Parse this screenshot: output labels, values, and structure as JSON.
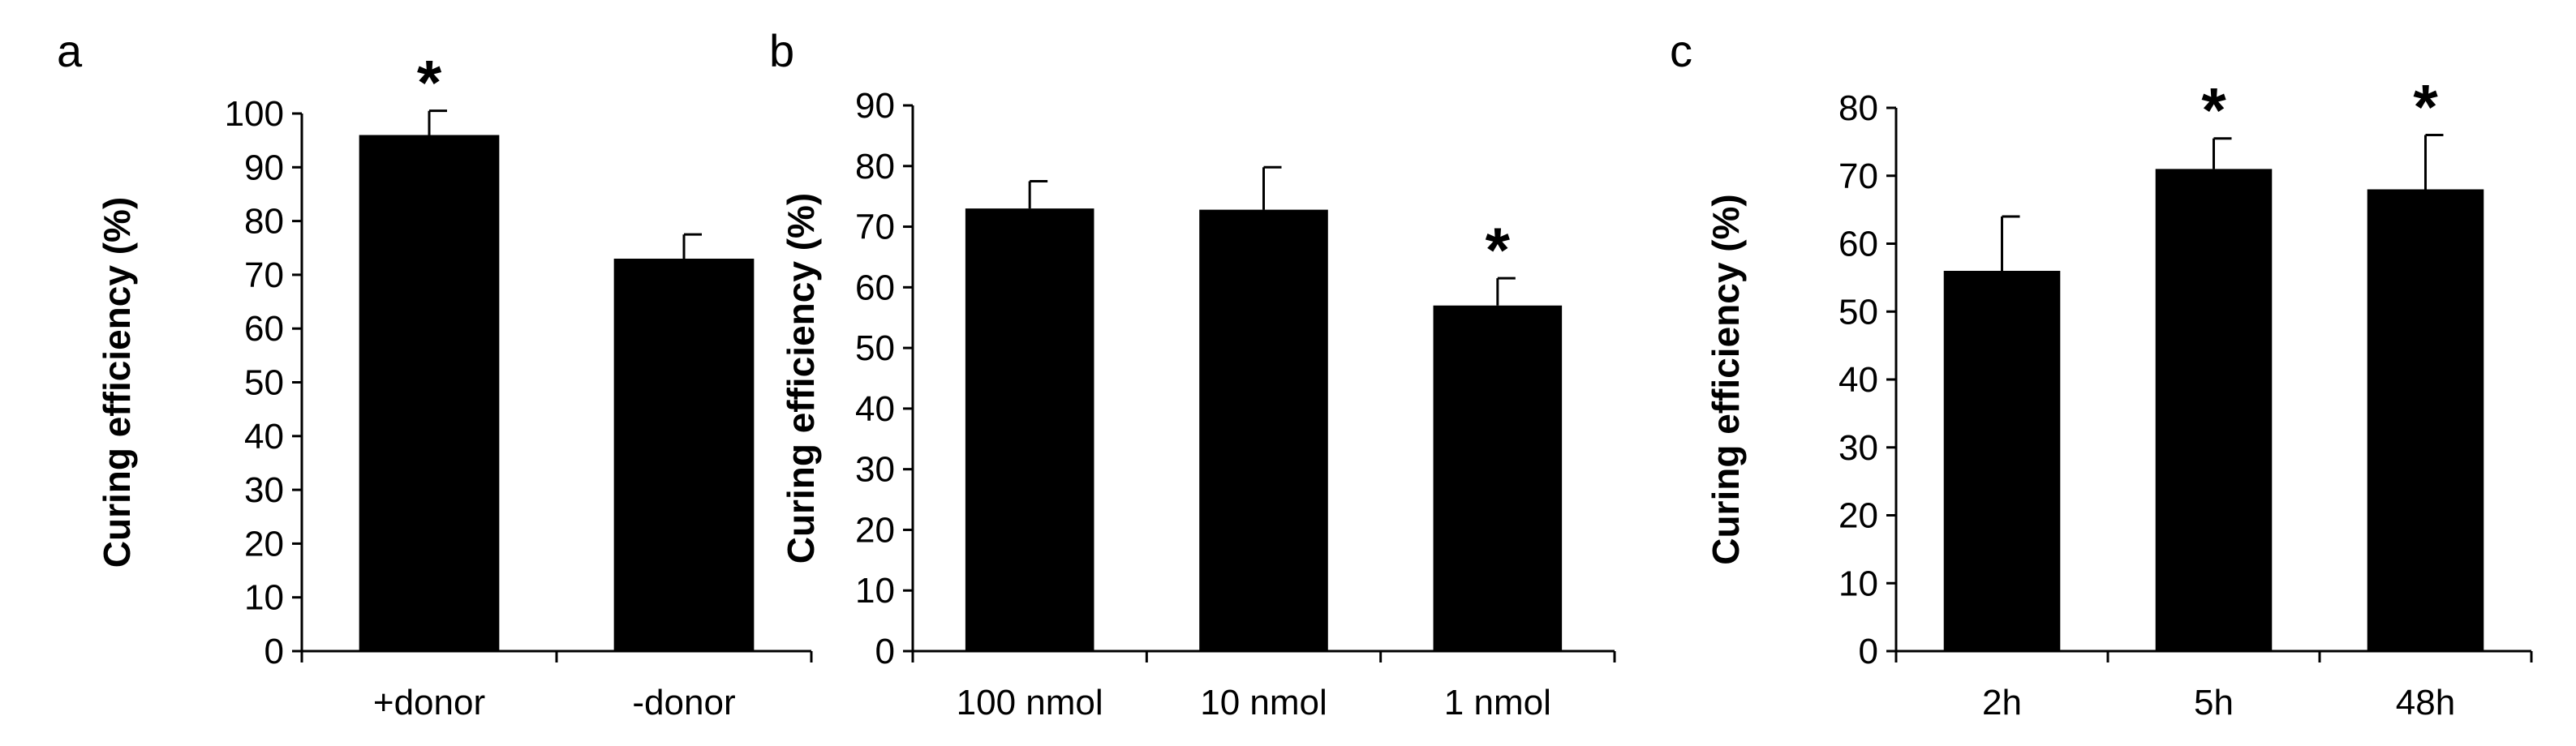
{
  "chart_data": [
    {
      "panel": "a",
      "type": "bar",
      "ylabel": "Curing efficiency (%)",
      "xlabel": "",
      "ylim": [
        0,
        100
      ],
      "yticks": [
        0,
        10,
        20,
        30,
        40,
        50,
        60,
        70,
        80,
        90,
        100
      ],
      "grid": false,
      "color": "#000000",
      "categories": [
        "+donor",
        "-donor"
      ],
      "values": [
        96,
        73
      ],
      "errors": [
        4.5,
        4.5
      ],
      "annotations": [
        "*",
        ""
      ]
    },
    {
      "panel": "b",
      "type": "bar",
      "ylabel": "Curing efficiency (%)",
      "xlabel": "",
      "ylim": [
        0,
        90
      ],
      "yticks": [
        0,
        10,
        20,
        30,
        40,
        50,
        60,
        70,
        80,
        90
      ],
      "grid": false,
      "color": "#000000",
      "categories": [
        "100 nmol",
        "10 nmol",
        "1 nmol"
      ],
      "values": [
        73,
        72.8,
        57
      ],
      "errors": [
        4.5,
        7,
        4.5
      ],
      "annotations": [
        "",
        "",
        "*"
      ]
    },
    {
      "panel": "c",
      "type": "bar",
      "ylabel": "Curing efficiency (%)",
      "xlabel": "",
      "ylim": [
        0,
        80
      ],
      "yticks": [
        0,
        10,
        20,
        30,
        40,
        50,
        60,
        70,
        80
      ],
      "grid": false,
      "color": "#000000",
      "categories": [
        "2h",
        "5h",
        "48h"
      ],
      "values": [
        56,
        71,
        68
      ],
      "errors": [
        8,
        4.5,
        8
      ],
      "annotations": [
        "",
        "*",
        "*"
      ]
    }
  ]
}
